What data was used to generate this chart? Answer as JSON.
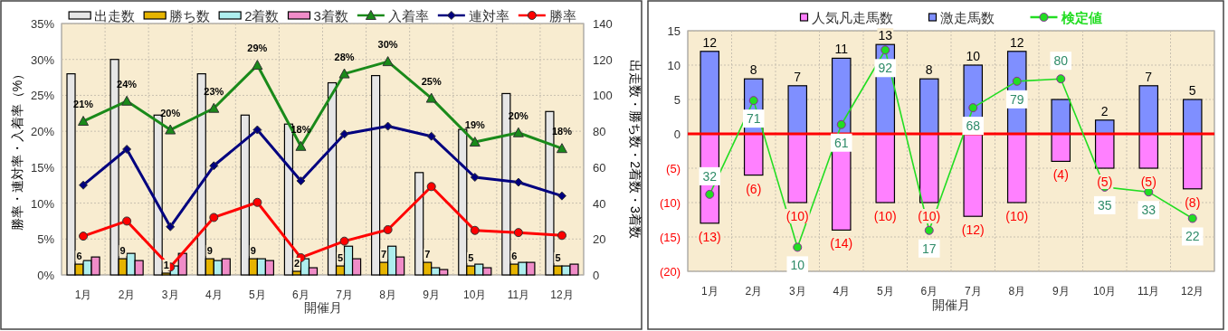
{
  "chart_data": [
    {
      "type": "bar",
      "categories": [
        "1月",
        "2月",
        "3月",
        "4月",
        "5月",
        "6月",
        "7月",
        "8月",
        "9月",
        "10月",
        "11月",
        "12月"
      ],
      "xlabel": "開催月",
      "ylabel": "勝率・連対率・入着率（%）",
      "y2label": "出走数・勝ち数・2着数・3着数",
      "ylim": [
        0,
        35
      ],
      "yticks": [
        {
          "value": 0,
          "label": "0%"
        },
        {
          "value": 5,
          "label": "5%"
        },
        {
          "value": 10,
          "label": "10%"
        },
        {
          "value": 15,
          "label": "15%"
        },
        {
          "value": 20,
          "label": "20%"
        },
        {
          "value": 25,
          "label": "25%"
        },
        {
          "value": 30,
          "label": "30%"
        },
        {
          "value": 35,
          "label": "35%"
        }
      ],
      "y2lim": [
        0,
        140
      ],
      "y2ticks": [
        0,
        20,
        40,
        60,
        80,
        100,
        120,
        140
      ],
      "grid": true,
      "legend": "top",
      "series": [
        {
          "name": "出走数",
          "color": "#e6e6e6",
          "axis": "y2",
          "values": [
            112,
            120,
            89,
            112,
            89,
            84,
            107,
            111,
            57,
            81,
            101,
            91
          ]
        },
        {
          "name": "勝ち数",
          "color": "#e6b400",
          "axis": "y2",
          "values": [
            6,
            9,
            1,
            9,
            9,
            2,
            5,
            7,
            7,
            5,
            6,
            5
          ],
          "value_labels": [
            "6",
            "9",
            "1",
            "9",
            "9",
            "2",
            "5",
            "7",
            "7",
            "5",
            "6",
            "5"
          ]
        },
        {
          "name": "2着数",
          "color": "#aeeeee",
          "axis": "y2",
          "values": [
            8,
            12,
            5,
            8,
            9,
            9,
            16,
            16,
            4,
            6,
            7,
            5
          ]
        },
        {
          "name": "3着数",
          "color": "#f08cc8",
          "axis": "y2",
          "values": [
            10,
            8,
            12,
            9,
            8,
            4,
            9,
            10,
            3,
            4,
            7,
            6
          ]
        },
        {
          "name": "入着率",
          "type": "line",
          "color": "#1a8a1a",
          "marker": "triangle",
          "values": [
            21.4,
            24.2,
            20.2,
            23.2,
            29.2,
            17.9,
            28.0,
            29.7,
            24.6,
            18.5,
            19.8,
            17.6
          ],
          "value_labels": [
            "21%",
            "24%",
            "20%",
            "23%",
            "29%",
            "18%",
            "28%",
            "30%",
            "25%",
            "19%",
            "20%",
            "18%"
          ]
        },
        {
          "name": "連対率",
          "type": "line",
          "color": "#00007f",
          "marker": "diamond",
          "values": [
            12.5,
            17.5,
            6.7,
            15.2,
            20.2,
            13.1,
            19.6,
            20.7,
            19.3,
            13.6,
            12.9,
            11.0
          ]
        },
        {
          "name": "勝率",
          "type": "line",
          "color": "#ff0000",
          "marker": "circle",
          "values": [
            5.4,
            7.5,
            1.1,
            8.0,
            10.1,
            2.4,
            4.7,
            6.3,
            12.3,
            6.2,
            5.9,
            5.5
          ]
        }
      ]
    },
    {
      "type": "bar",
      "stacked": true,
      "categories": [
        "1月",
        "2月",
        "3月",
        "4月",
        "5月",
        "6月",
        "7月",
        "8月",
        "9月",
        "10月",
        "11月",
        "12月"
      ],
      "xlabel": "開催月",
      "ylim": [
        -20,
        15
      ],
      "yticks": [
        15,
        10,
        5,
        0,
        {
          "value": -5,
          "label": "(5)"
        },
        {
          "value": -10,
          "label": "(10)"
        },
        {
          "value": -15,
          "label": "(15)"
        },
        {
          "value": -20,
          "label": "(20)"
        }
      ],
      "y2lim": [
        0,
        100
      ],
      "grid": true,
      "legend": "top",
      "ref_lines": [
        {
          "axis": "y",
          "value": 0,
          "color": "#ff0000"
        }
      ],
      "series": [
        {
          "name": "人気凡走馬数",
          "color": "#ff80ff",
          "values": [
            -13,
            -6,
            -10,
            -14,
            -10,
            -10,
            -12,
            -10,
            -4,
            -5,
            -5,
            -8
          ],
          "value_labels": [
            "(13)",
            "(6)",
            "(10)",
            "(14)",
            "(10)",
            "(10)",
            "(12)",
            "(10)",
            "(4)",
            "(5)",
            "(5)",
            "(8)"
          ]
        },
        {
          "name": "激走馬数",
          "color": "#7f8fff",
          "values": [
            12,
            8,
            7,
            11,
            13,
            8,
            10,
            12,
            5,
            2,
            7,
            5
          ],
          "value_labels": [
            "12",
            "8",
            "7",
            "11",
            "13",
            "8",
            "10",
            "12",
            null,
            "2",
            "7",
            "5"
          ]
        },
        {
          "name": "検定値",
          "type": "line",
          "axis": "y2",
          "color": "#22dd22",
          "marker": "circle",
          "values": [
            32,
            71,
            10,
            61,
            92,
            17,
            68,
            79,
            80,
            35,
            33,
            22
          ],
          "value_labels": [
            "32",
            "71",
            "10",
            "61",
            "92",
            "17",
            "68",
            "79",
            "80",
            "35",
            "33",
            "22"
          ]
        }
      ]
    }
  ]
}
